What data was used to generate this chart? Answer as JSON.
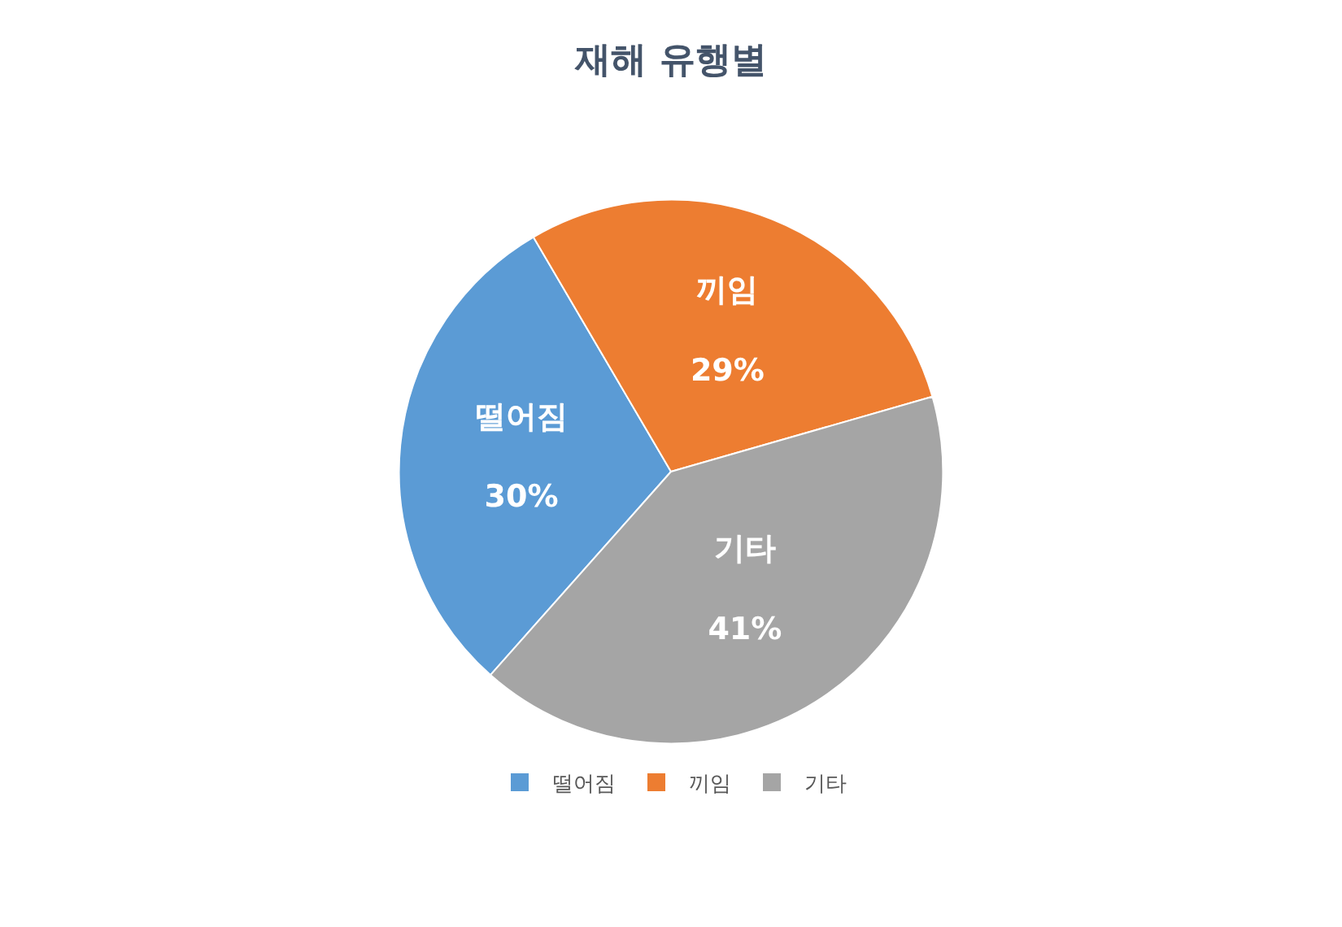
{
  "chart_data": {
    "type": "pie",
    "title": "재해 유행별",
    "categories": [
      "떨어짐",
      "끼임",
      "기타"
    ],
    "values": [
      30,
      29,
      41
    ],
    "colors": [
      "#5b9bd5",
      "#ed7d31",
      "#a5a5a5"
    ],
    "value_labels": [
      "30%",
      "29%",
      "41%"
    ],
    "legend": "bottom"
  }
}
